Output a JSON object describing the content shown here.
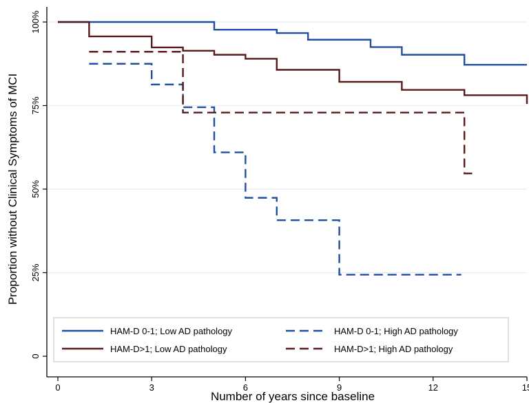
{
  "chart_data": {
    "type": "line",
    "subtype": "kaplan-meier step curves",
    "title": "",
    "xlabel": "Number of years since baseline",
    "ylabel": "Proportion without Clinical Symptoms of MCI",
    "xlim": [
      0,
      15
    ],
    "ylim": [
      0,
      1
    ],
    "x_ticks": [
      0,
      3,
      6,
      9,
      12,
      15
    ],
    "x_tick_labels": [
      "0",
      "3",
      "6",
      "9",
      "12",
      "15"
    ],
    "y_ticks": [
      0,
      0.25,
      0.5,
      0.75,
      1.0
    ],
    "y_tick_labels": [
      "0",
      "25%",
      "50%",
      "75%",
      "100%"
    ],
    "grid": "horizontal",
    "legend_position": "bottom",
    "series": [
      {
        "name": "HAM-D 0-1; Low AD pathology",
        "color": "#1f4fa3",
        "dash": "solid",
        "x": [
          0,
          5,
          7,
          8,
          10,
          11,
          13,
          15
        ],
        "y": [
          1.0,
          0.977,
          0.967,
          0.947,
          0.925,
          0.902,
          0.872,
          0.872
        ]
      },
      {
        "name": "HAM-D>1; Low AD pathology",
        "color": "#5a1a1a",
        "dash": "solid",
        "x": [
          0,
          1,
          3,
          4,
          5,
          6,
          7,
          9,
          11,
          13,
          15
        ],
        "y": [
          1.0,
          0.957,
          0.924,
          0.914,
          0.902,
          0.89,
          0.857,
          0.821,
          0.797,
          0.781,
          0.755
        ]
      },
      {
        "name": "HAM-D 0-1; High AD pathology",
        "color": "#1f4fa3",
        "dash": "dashed",
        "x": [
          1,
          3,
          4,
          5,
          6,
          7,
          9,
          12.9
        ],
        "y": [
          0.875,
          0.813,
          0.745,
          0.61,
          0.474,
          0.407,
          0.244,
          0.244
        ]
      },
      {
        "name": "HAM-D>1; High AD pathology",
        "color": "#5a1a1a",
        "dash": "dashed",
        "x": [
          1,
          4,
          13,
          13.3
        ],
        "y": [
          0.911,
          0.729,
          0.547,
          0.547
        ]
      }
    ]
  }
}
